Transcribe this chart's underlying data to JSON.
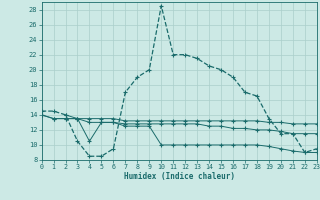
{
  "xlabel": "Humidex (Indice chaleur)",
  "xlim": [
    0,
    23
  ],
  "ylim": [
    8,
    29
  ],
  "yticks": [
    8,
    10,
    12,
    14,
    16,
    18,
    20,
    22,
    24,
    26,
    28
  ],
  "xticks": [
    0,
    1,
    2,
    3,
    4,
    5,
    6,
    7,
    8,
    9,
    10,
    11,
    12,
    13,
    14,
    15,
    16,
    17,
    18,
    19,
    20,
    21,
    22,
    23
  ],
  "bg_color": "#cce9e5",
  "line_color": "#1a6b6b",
  "grid_color": "#aacfcb",
  "curve1_x": [
    0,
    1,
    2,
    3,
    4,
    5,
    6,
    7,
    8,
    9,
    10,
    11,
    12,
    13,
    14,
    15,
    16,
    17,
    18,
    19,
    20,
    21,
    22,
    23
  ],
  "curve1_y": [
    14.5,
    14.5,
    14.0,
    10.5,
    8.5,
    8.5,
    9.5,
    17.0,
    19.0,
    20.0,
    28.5,
    22.0,
    22.0,
    21.5,
    20.5,
    20.0,
    19.0,
    17.0,
    16.5,
    13.5,
    11.5,
    11.5,
    9.0,
    9.5
  ],
  "curve2_x": [
    0,
    1,
    2,
    3,
    4,
    5,
    6,
    7,
    8,
    9,
    10,
    11,
    12,
    13,
    14,
    15,
    16,
    17,
    18,
    19,
    20,
    21,
    22,
    23
  ],
  "curve2_y": [
    14.0,
    13.5,
    13.5,
    13.5,
    13.5,
    13.5,
    13.5,
    13.2,
    13.2,
    13.2,
    13.2,
    13.2,
    13.2,
    13.2,
    13.2,
    13.2,
    13.2,
    13.2,
    13.2,
    13.0,
    13.0,
    12.8,
    12.8,
    12.8
  ],
  "curve3_x": [
    0,
    1,
    2,
    3,
    4,
    5,
    6,
    7,
    8,
    9,
    10,
    11,
    12,
    13,
    14,
    15,
    16,
    17,
    18,
    19,
    20,
    21,
    22,
    23
  ],
  "curve3_y": [
    14.0,
    13.5,
    13.5,
    13.5,
    13.0,
    13.0,
    13.0,
    12.5,
    12.5,
    12.5,
    10.0,
    10.0,
    10.0,
    10.0,
    10.0,
    10.0,
    10.0,
    10.0,
    10.0,
    9.8,
    9.5,
    9.2,
    9.0,
    9.0
  ],
  "curve4_x": [
    2,
    3,
    4,
    5,
    6,
    7,
    8,
    9,
    10,
    11,
    12,
    13,
    14,
    15,
    16,
    17,
    18,
    19,
    20,
    21,
    22,
    23
  ],
  "curve4_y": [
    14.0,
    13.5,
    10.5,
    13.0,
    13.0,
    12.8,
    12.8,
    12.8,
    12.8,
    12.8,
    12.8,
    12.8,
    12.5,
    12.5,
    12.2,
    12.2,
    12.0,
    12.0,
    11.8,
    11.5,
    11.5,
    11.5
  ]
}
